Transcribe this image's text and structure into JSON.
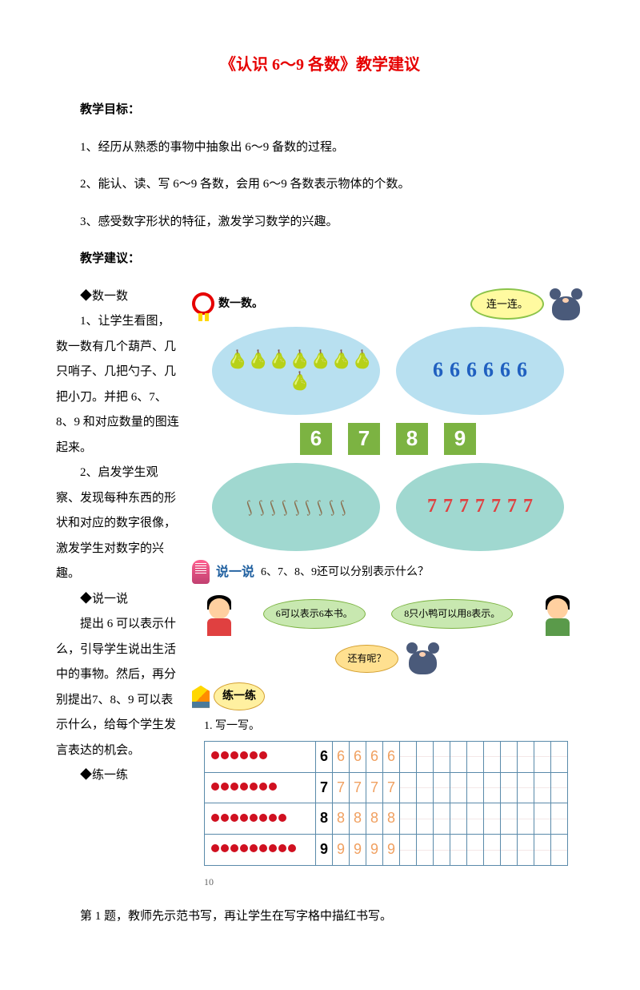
{
  "title": "《认识 6～9 各数》教学建议",
  "goals_heading": "教学目标：",
  "goals": [
    "1、经历从熟悉的事物中抽象出 6～9 备数的过程。",
    "2、能认、读、写 6～9 各数，会用 6～9 各数表示物体的个数。",
    "3、感受数字形状的特征，激发学习数学的兴趣。"
  ],
  "advice_heading": "教学建议：",
  "sections": {
    "count": "◆数一数",
    "count_p1": "1、让学生看图，数一数有几个葫芦、几只哨子、几把勺子、几把小刀。并把 6、7、8、9 和对应数量的图连起来。",
    "count_p2": "2、启发学生观察、发现每种东西的形状和对应的数字很像，激发学生对数字的兴趣。",
    "talk": "◆说一说",
    "talk_p": "提出 6 可以表示什么，引导学生说出生活中的事物。然后，再分别提出7、8、9 可以表示什么，给每个学生发言表达的机会。",
    "practice": "◆练一练",
    "practice_p": "第 1 题，教师先示范书写，再让学生在写字格中描红书写。"
  },
  "figure": {
    "count_label": "数一数。",
    "connect": "连一连。",
    "boxes": [
      "6",
      "7",
      "8",
      "9"
    ],
    "talk_bracket": "说一说",
    "talk_q": "6、7、8、9还可以分别表示什么？",
    "bubble6": "6可以表示6本书。",
    "bubble8": "8只小鸭可以用8表示。",
    "more": "还有呢？",
    "practice_label": "练一练",
    "write_title": "1. 写一写。",
    "rows": [
      {
        "n": 6,
        "d": 6
      },
      {
        "n": 7,
        "d": 7
      },
      {
        "n": 8,
        "d": 8
      },
      {
        "n": 9,
        "d": 9
      }
    ],
    "page": "10"
  },
  "colors": {
    "title": "#e60000",
    "box": "#7cb342",
    "oval_blue": "#b8e0f0",
    "oval_teal": "#a0d8d0",
    "dot": "#d01020"
  }
}
